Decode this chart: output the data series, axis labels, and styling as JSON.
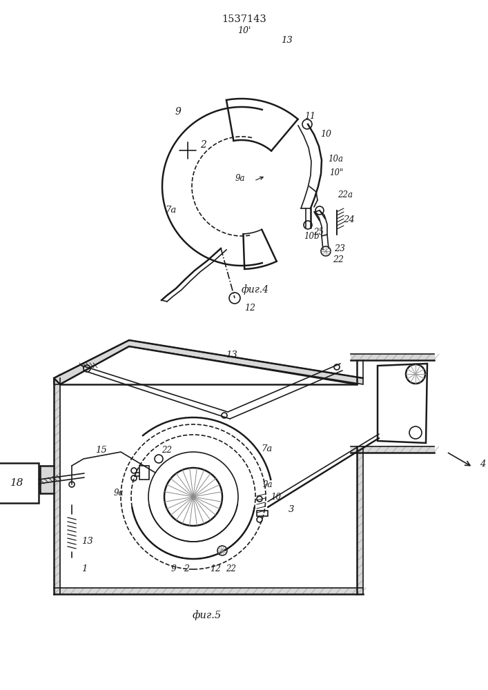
{
  "title": "1537143",
  "fig4_label": "фиг.4",
  "fig5_label": "фиг.5",
  "bg_color": "#ffffff",
  "line_color": "#1a1a1a",
  "fig_width": 7.07,
  "fig_height": 10.0,
  "dpi": 100
}
